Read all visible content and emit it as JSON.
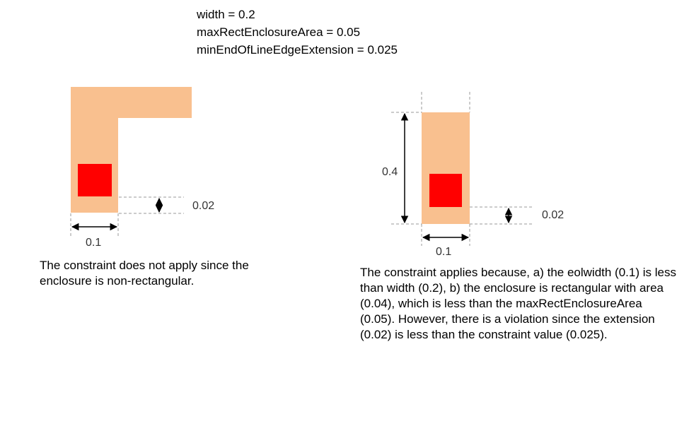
{
  "parameters": [
    "width = 0.2",
    "maxRectEnclosureArea = 0.05",
    "minEndOfLineEdgeExtension = 0.025"
  ],
  "left_example": {
    "extension_label": "0.02",
    "width_label": "0.1",
    "caption": "The constraint does not apply since the enclosure is non-rectangular."
  },
  "right_example": {
    "height_label": "0.4",
    "extension_label": "0.02",
    "width_label": "0.1",
    "caption": "The constraint applies because, a) the eolwidth (0.1) is less than width (0.2), b) the enclosure is rectangular with area (0.04), which is less than the maxRectEnclosureArea (0.05). However, there is a violation since the extension (0.02) is less than the constraint value (0.025)."
  },
  "colors": {
    "metal": "#f9c08f",
    "via": "#ff0000",
    "guide": "#999999",
    "arrow": "#000000"
  }
}
